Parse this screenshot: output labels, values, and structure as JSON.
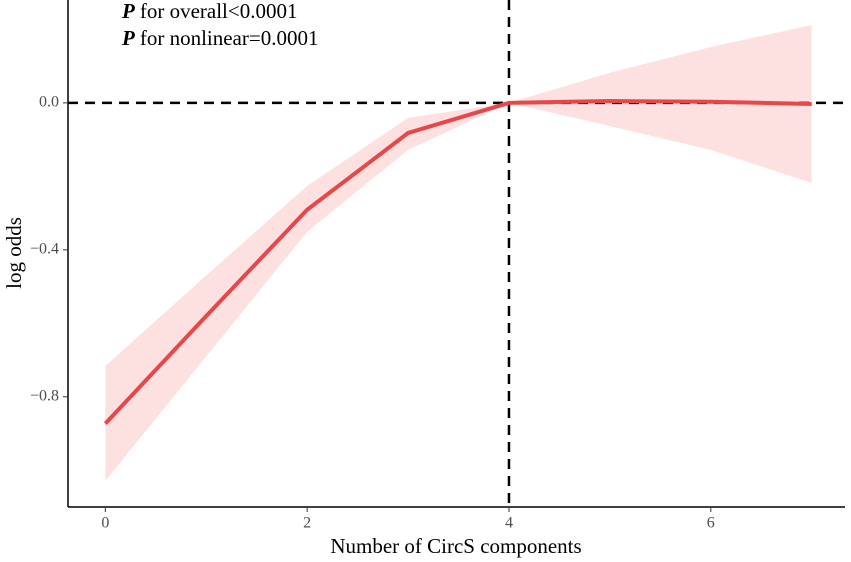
{
  "chart_data": {
    "type": "line",
    "xlabel": "Number of CircS components",
    "ylabel": "log odds",
    "annotations": [
      {
        "symbol": "P",
        "text": "for overall<0.0001"
      },
      {
        "symbol": "P",
        "text": "for nonlinear=0.0001"
      }
    ],
    "x": [
      0,
      1,
      2,
      3,
      4,
      5,
      6,
      7
    ],
    "series": [
      {
        "color": "#e8474a",
        "band_color": "#fde0e0",
        "values": [
          -0.873,
          -0.58,
          -0.291,
          -0.082,
          0,
          0.005,
          0.003,
          -0.003
        ],
        "lower": [
          -1.029,
          -0.69,
          -0.351,
          -0.128,
          0,
          -0.063,
          -0.128,
          -0.218
        ],
        "upper": [
          -0.716,
          -0.47,
          -0.226,
          -0.041,
          0,
          0.082,
          0.152,
          0.212
        ]
      }
    ],
    "xlim": [
      -0.37,
      7.33
    ],
    "ylim": [
      -1.1,
      0.28
    ],
    "xticks": [
      0,
      2,
      4,
      6
    ],
    "yticks": [
      {
        "value": 0,
        "label": "0.0"
      },
      {
        "value": -0.4,
        "label": "−0.4"
      },
      {
        "value": -0.8,
        "label": "−0.8"
      }
    ],
    "hline": 0,
    "vline": 4
  }
}
